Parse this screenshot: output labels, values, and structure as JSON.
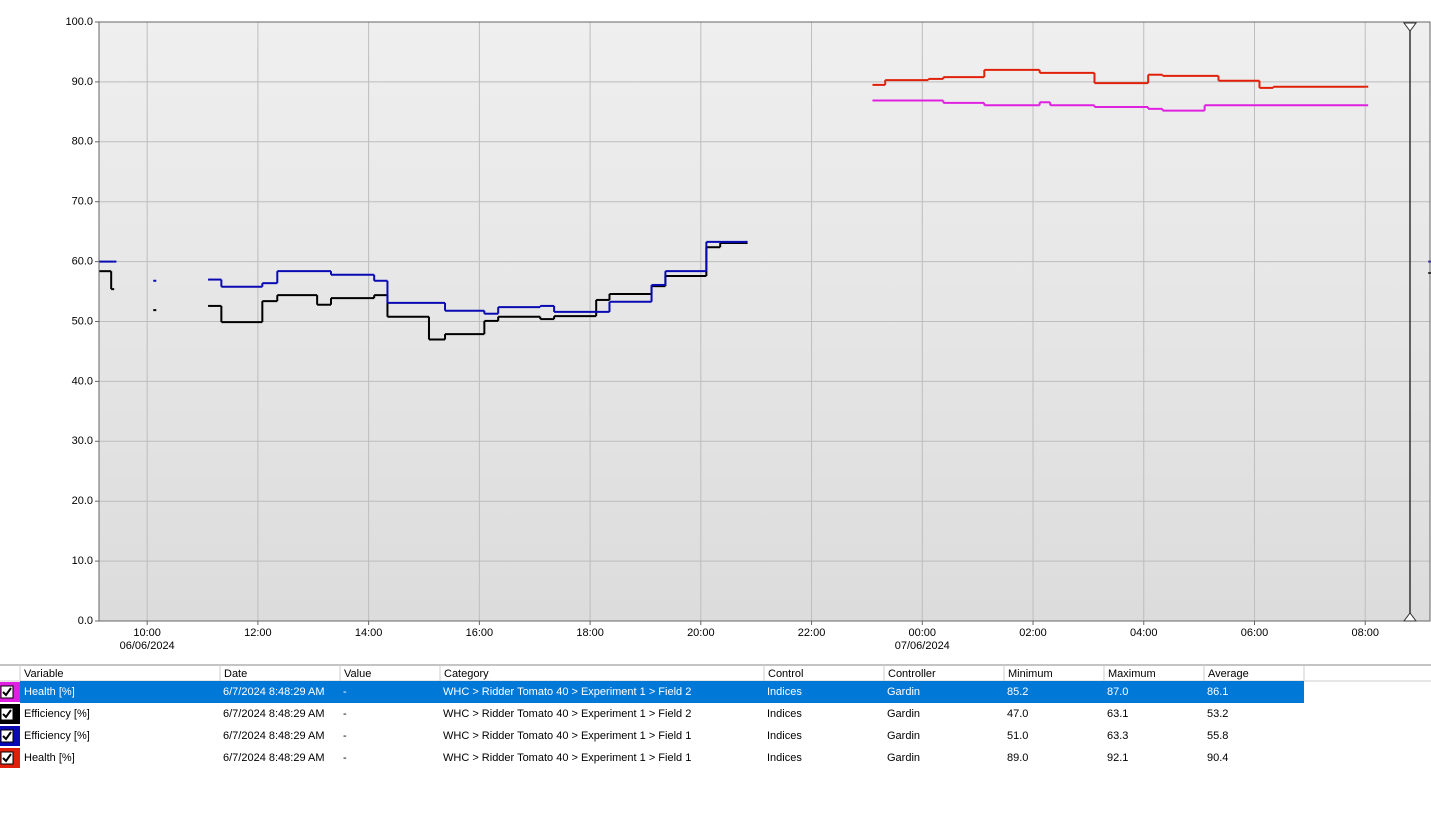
{
  "chart_data": {
    "type": "step",
    "xlim": [
      9.13,
      33.17
    ],
    "xticks": [
      {
        "value": 10,
        "label": "10:00",
        "sublabel": "06/06/2024"
      },
      {
        "value": 12,
        "label": "12:00"
      },
      {
        "value": 14,
        "label": "14:00"
      },
      {
        "value": 16,
        "label": "16:00"
      },
      {
        "value": 18,
        "label": "18:00"
      },
      {
        "value": 20,
        "label": "20:00"
      },
      {
        "value": 22,
        "label": "22:00"
      },
      {
        "value": 24,
        "label": "00:00",
        "sublabel": "07/06/2024"
      },
      {
        "value": 26,
        "label": "02:00"
      },
      {
        "value": 28,
        "label": "04:00"
      },
      {
        "value": 30,
        "label": "06:00"
      },
      {
        "value": 32,
        "label": "08:00"
      }
    ],
    "ylim": [
      0,
      100
    ],
    "yticks": [
      {
        "value": 0,
        "label": "0.0"
      },
      {
        "value": 10,
        "label": "10.0"
      },
      {
        "value": 20,
        "label": "20.0"
      },
      {
        "value": 30,
        "label": "30.0"
      },
      {
        "value": 40,
        "label": "40.0"
      },
      {
        "value": 50,
        "label": "50.0"
      },
      {
        "value": 60,
        "label": "60.0"
      },
      {
        "value": 70,
        "label": "70.0"
      },
      {
        "value": 80,
        "label": "80.0"
      },
      {
        "value": 90,
        "label": "90.0"
      },
      {
        "value": 100,
        "label": "100.0"
      }
    ],
    "grid": true,
    "series": [
      {
        "color": "#e020e0",
        "x": [
          23.1,
          24.38,
          25.12,
          26.12,
          26.31,
          27.11,
          28.08,
          28.34,
          29.1,
          32.0
        ],
        "values": [
          86.9,
          86.5,
          86.1,
          86.6,
          86.1,
          85.8,
          85.5,
          85.2,
          86.1,
          86.1
        ]
      },
      {
        "color": "#000000",
        "x": [
          9.13,
          9.35,
          9.75,
          10.11,
          10.6,
          11.1,
          11.34,
          12.08,
          12.35,
          13.07,
          13.32,
          14.1,
          14.34,
          15.09,
          15.38,
          16.09,
          16.34,
          17.1,
          17.35,
          18.11,
          18.35,
          19.11,
          19.36,
          20.1,
          20.35,
          20.79,
          27.0,
          33.14
        ],
        "values": [
          58.4,
          55.4,
          null,
          51.9,
          null,
          52.6,
          49.9,
          53.4,
          54.4,
          52.8,
          53.9,
          54.4,
          50.8,
          47.0,
          47.9,
          50.1,
          50.8,
          50.4,
          50.9,
          53.6,
          54.6,
          55.9,
          57.6,
          62.4,
          63.1,
          63.1,
          null,
          58.1
        ]
      },
      {
        "color": "#0a0ab4",
        "x": [
          9.13,
          9.39,
          9.75,
          10.11,
          10.6,
          11.1,
          11.34,
          12.08,
          12.35,
          13.32,
          14.1,
          14.34,
          15.38,
          16.09,
          16.34,
          17.1,
          17.35,
          18.35,
          19.11,
          19.36,
          20.1,
          20.79,
          27.0,
          33.14
        ],
        "values": [
          60.0,
          60.0,
          null,
          56.8,
          null,
          57.0,
          55.8,
          56.4,
          58.4,
          57.8,
          56.8,
          53.1,
          51.8,
          51.3,
          52.4,
          52.6,
          51.6,
          53.3,
          56.1,
          58.4,
          63.3,
          63.3,
          null,
          60.0
        ]
      },
      {
        "color": "#e0200a",
        "x": [
          23.1,
          23.33,
          24.11,
          24.38,
          25.12,
          26.12,
          27.11,
          28.08,
          28.34,
          29.35,
          30.09,
          30.34,
          32.0
        ],
        "values": [
          89.5,
          90.3,
          90.5,
          90.8,
          92.0,
          91.5,
          89.8,
          91.2,
          91.0,
          90.2,
          89.0,
          89.2,
          89.2
        ]
      }
    ]
  },
  "table": {
    "columns": [
      "Variable",
      "Date",
      "Value",
      "Category",
      "Control",
      "Controller",
      "Minimum",
      "Maximum",
      "Average"
    ],
    "selected": 0,
    "rows": [
      {
        "color": "#e020e0",
        "cells": [
          "Health [%]",
          "6/7/2024 8:48:29 AM",
          "-",
          "WHC > Ridder Tomato 40 > Experiment 1 > Field 2",
          "Indices",
          "Gardin",
          "85.2",
          "87.0",
          "86.1"
        ]
      },
      {
        "color": "#000000",
        "cells": [
          "Efficiency [%]",
          "6/7/2024 8:48:29 AM",
          "-",
          "WHC > Ridder Tomato 40 > Experiment 1 > Field 2",
          "Indices",
          "Gardin",
          "47.0",
          "63.1",
          "53.2"
        ]
      },
      {
        "color": "#0a0ab4",
        "cells": [
          "Efficiency [%]",
          "6/7/2024 8:48:29 AM",
          "-",
          "WHC > Ridder Tomato 40 > Experiment 1 > Field 1",
          "Indices",
          "Gardin",
          "51.0",
          "63.3",
          "55.8"
        ]
      },
      {
        "color": "#e0200a",
        "cells": [
          "Health [%]",
          "6/7/2024 8:48:29 AM",
          "-",
          "WHC > Ridder Tomato 40 > Experiment 1 > Field 1",
          "Indices",
          "Gardin",
          "89.0",
          "92.1",
          "90.4"
        ]
      }
    ]
  }
}
